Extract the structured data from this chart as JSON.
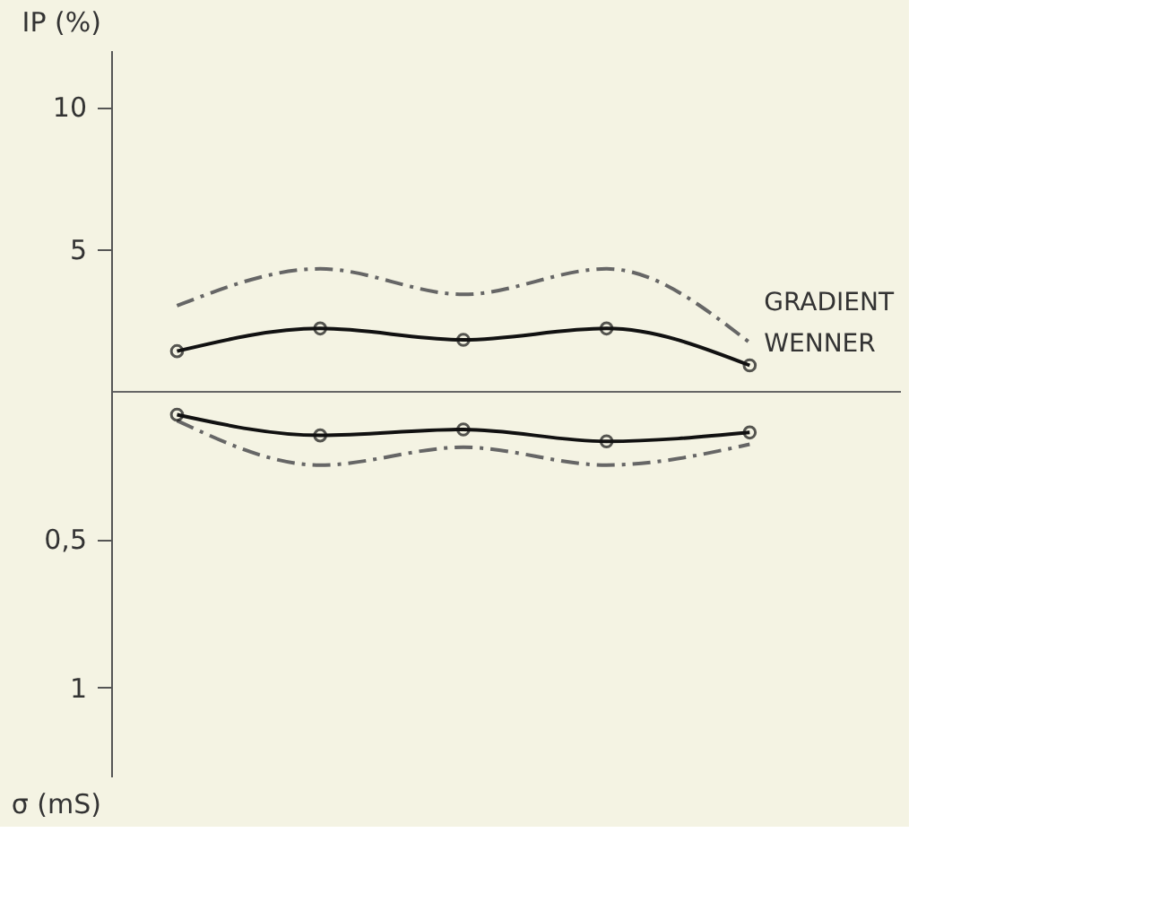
{
  "chart_data": [
    {
      "type": "line",
      "ylabel": "IP (%)",
      "categories": [
        null,
        null,
        null,
        null,
        null
      ],
      "ylim": [
        0,
        12
      ],
      "yticks": [
        5,
        10
      ],
      "tick_labels": "y",
      "grid": false,
      "legend": false,
      "series": [
        {
          "name": "GRADIENT",
          "color": "#666666",
          "line_style": "dashed",
          "marker": "none",
          "values": [
            3.0,
            4.3,
            3.4,
            4.3,
            1.7
          ]
        },
        {
          "name": "WENNER",
          "color": "#111111",
          "line_style": "solid",
          "marker": "circle",
          "values": [
            1.4,
            2.2,
            1.8,
            2.2,
            0.9
          ]
        }
      ]
    },
    {
      "type": "line",
      "ylabel": "σ (mS)",
      "categories": [
        null,
        null,
        null,
        null,
        null
      ],
      "ylim": [
        1.3,
        0
      ],
      "yticks": [
        {
          "value": 0.5,
          "label": "0,5"
        },
        1
      ],
      "tick_labels": "y",
      "grid": false,
      "legend": false,
      "series": [
        {
          "color": "#666666",
          "line_style": "dashed",
          "marker": "none",
          "values": [
            0.1,
            0.25,
            0.19,
            0.25,
            0.18
          ]
        },
        {
          "color": "#111111",
          "line_style": "solid",
          "marker": "circle",
          "values": [
            0.08,
            0.15,
            0.13,
            0.17,
            0.14
          ]
        }
      ]
    }
  ]
}
